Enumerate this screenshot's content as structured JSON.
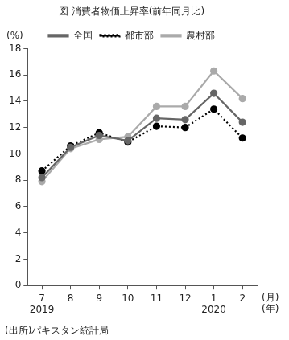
{
  "chart_data": {
    "type": "line",
    "title": "図 消費者物価上昇率(前年同月比)",
    "y_label": "(%)",
    "x_label": "(月)",
    "x2_label": "(年)",
    "source": "(出所)パキスタン統計局",
    "categories": [
      "7",
      "8",
      "9",
      "10",
      "11",
      "12",
      "1",
      "2"
    ],
    "years": [
      "2019",
      null,
      null,
      null,
      null,
      null,
      "2020",
      null
    ],
    "series": [
      {
        "name": "全国",
        "color": "#666666",
        "marker": "circle",
        "line_style": "solid",
        "values": [
          8.2,
          10.5,
          11.4,
          11.0,
          12.7,
          12.6,
          14.6,
          12.4
        ]
      },
      {
        "name": "都市部",
        "color": "#000000",
        "marker": "circle",
        "line_style": "dotted",
        "values": [
          8.7,
          10.6,
          11.6,
          10.9,
          12.1,
          12.0,
          13.4,
          11.2
        ]
      },
      {
        "name": "農村部",
        "color": "#aaaaaa",
        "marker": "circle",
        "line_style": "solid",
        "values": [
          7.9,
          10.4,
          11.1,
          11.3,
          13.6,
          13.6,
          16.3,
          14.2
        ]
      }
    ],
    "ylim": [
      0,
      18
    ],
    "yticks": [
      0,
      2,
      4,
      6,
      8,
      10,
      12,
      14,
      16,
      18
    ],
    "grid": false,
    "legend": "top"
  }
}
